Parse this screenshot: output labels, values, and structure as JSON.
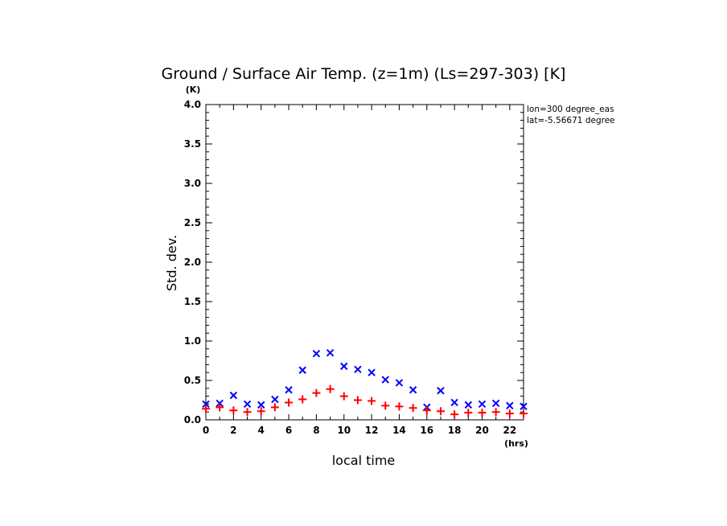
{
  "chart_data": {
    "type": "scatter",
    "title": "Ground / Surface Air Temp. (z=1m) (Ls=297-303) [K]",
    "xlabel": "local time",
    "ylabel": "Std. dev.",
    "x_unit": "(hrs)",
    "y_unit": "(K)",
    "xlim": [
      0,
      23
    ],
    "ylim": [
      0,
      4
    ],
    "x_ticks": [
      0,
      2,
      4,
      6,
      8,
      10,
      12,
      14,
      16,
      18,
      20,
      22
    ],
    "y_ticks": [
      0.0,
      0.5,
      1.0,
      1.5,
      2.0,
      2.5,
      3.0,
      3.5,
      4.0
    ],
    "y_tick_labels": [
      "0.0",
      "0.5",
      "1.0",
      "1.5",
      "2.0",
      "2.5",
      "3.0",
      "3.5",
      "4.0"
    ],
    "annotations": [
      "lon=300 degree_eas",
      "lat=-5.56671 degree"
    ],
    "x": [
      0,
      1,
      2,
      3,
      4,
      5,
      6,
      7,
      8,
      9,
      10,
      11,
      12,
      13,
      14,
      15,
      16,
      17,
      18,
      19,
      20,
      21,
      22,
      23
    ],
    "series": [
      {
        "marker": "x",
        "color": "#0000ff",
        "values": [
          0.2,
          0.21,
          0.31,
          0.2,
          0.19,
          0.26,
          0.38,
          0.63,
          0.84,
          0.85,
          0.68,
          0.64,
          0.6,
          0.51,
          0.47,
          0.38,
          0.16,
          0.37,
          0.22,
          0.19,
          0.2,
          0.21,
          0.18,
          0.17
        ]
      },
      {
        "marker": "+",
        "color": "#ff0000",
        "values": [
          0.14,
          0.16,
          0.12,
          0.1,
          0.11,
          0.16,
          0.22,
          0.26,
          0.34,
          0.39,
          0.3,
          0.25,
          0.24,
          0.18,
          0.17,
          0.15,
          0.12,
          0.11,
          0.07,
          0.09,
          0.09,
          0.1,
          0.08,
          0.08
        ]
      }
    ]
  }
}
